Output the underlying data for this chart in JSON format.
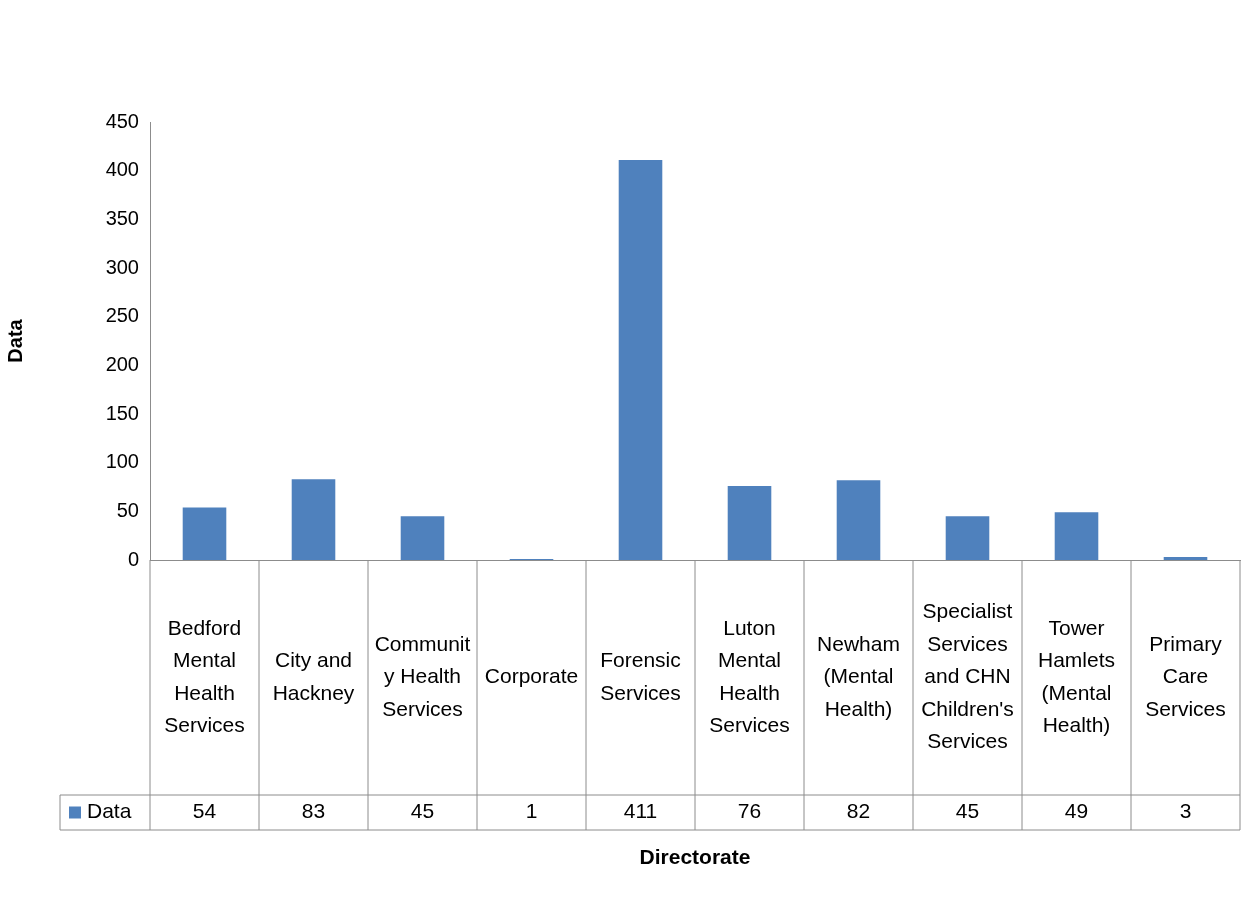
{
  "chart_data": {
    "type": "bar",
    "xlabel": "Directorate",
    "ylabel": "Data",
    "categories": [
      "Bedford Mental Health Services",
      "City and Hackney",
      "Community Health Services",
      "Corporate",
      "Forensic Services",
      "Luton Mental Health Services",
      "Newham (Mental Health)",
      "Specialist Services and CHN Children's Services",
      "Tower Hamlets (Mental Health)",
      "Primary Care Services"
    ],
    "series": [
      {
        "name": "Data",
        "color": "#4f81bd",
        "values": [
          54,
          83,
          45,
          1,
          411,
          76,
          82,
          45,
          49,
          3
        ]
      }
    ],
    "ylim": [
      0,
      450
    ],
    "yticks": [
      0,
      50,
      100,
      150,
      200,
      250,
      300,
      350,
      400,
      450
    ],
    "grid": false,
    "legend": "bottom",
    "data_labels": true
  }
}
